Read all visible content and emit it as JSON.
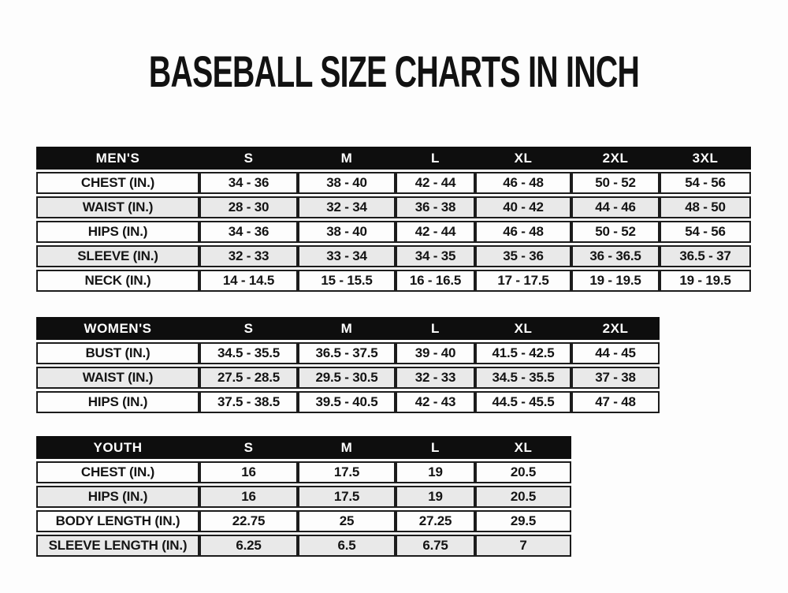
{
  "page_title": "BASEBALL SIZE CHARTS IN INCH",
  "colors": {
    "header_bg": "#0e0e0e",
    "header_text": "#ffffff",
    "row_bg": "#fdfdfd",
    "row_alt_bg": "#e9e9e9",
    "border": "#1c1c1c",
    "text": "#141414"
  },
  "chart_data": [
    {
      "type": "table",
      "name": "mens-sizes",
      "columns": [
        "MEN'S",
        "S",
        "M",
        "L",
        "XL",
        "2XL",
        "3XL"
      ],
      "rows": [
        [
          "CHEST (IN.)",
          "34 - 36",
          "38 - 40",
          "42 - 44",
          "46 - 48",
          "50 - 52",
          "54 - 56"
        ],
        [
          "WAIST (IN.)",
          "28 - 30",
          "32 - 34",
          "36 - 38",
          "40 - 42",
          "44 - 46",
          "48 - 50"
        ],
        [
          "HIPS (IN.)",
          "34 - 36",
          "38 - 40",
          "42 - 44",
          "46 - 48",
          "50 - 52",
          "54 - 56"
        ],
        [
          "SLEEVE (IN.)",
          "32 - 33",
          "33 - 34",
          "34 - 35",
          "35 - 36",
          "36 - 36.5",
          "36.5 - 37"
        ],
        [
          "NECK (IN.)",
          "14 - 14.5",
          "15 - 15.5",
          "16 - 16.5",
          "17 - 17.5",
          "19 - 19.5",
          "19 - 19.5"
        ]
      ]
    },
    {
      "type": "table",
      "name": "womens-sizes",
      "columns": [
        "WOMEN'S",
        "S",
        "M",
        "L",
        "XL",
        "2XL"
      ],
      "rows": [
        [
          "BUST (IN.)",
          "34.5 - 35.5",
          "36.5 - 37.5",
          "39 - 40",
          "41.5 - 42.5",
          "44 - 45"
        ],
        [
          "WAIST (IN.)",
          "27.5 - 28.5",
          "29.5 - 30.5",
          "32 - 33",
          "34.5 - 35.5",
          "37 - 38"
        ],
        [
          "HIPS (IN.)",
          "37.5 - 38.5",
          "39.5 - 40.5",
          "42 - 43",
          "44.5 - 45.5",
          "47 - 48"
        ]
      ]
    },
    {
      "type": "table",
      "name": "youth-sizes",
      "columns": [
        "YOUTH",
        "S",
        "M",
        "L",
        "XL"
      ],
      "rows": [
        [
          "CHEST (IN.)",
          "16",
          "17.5",
          "19",
          "20.5"
        ],
        [
          "HIPS (IN.)",
          "16",
          "17.5",
          "19",
          "20.5"
        ],
        [
          "BODY LENGTH (IN.)",
          "22.75",
          "25",
          "27.25",
          "29.5"
        ],
        [
          "SLEEVE LENGTH (IN.)",
          "6.25",
          "6.5",
          "6.75",
          "7"
        ]
      ]
    }
  ]
}
